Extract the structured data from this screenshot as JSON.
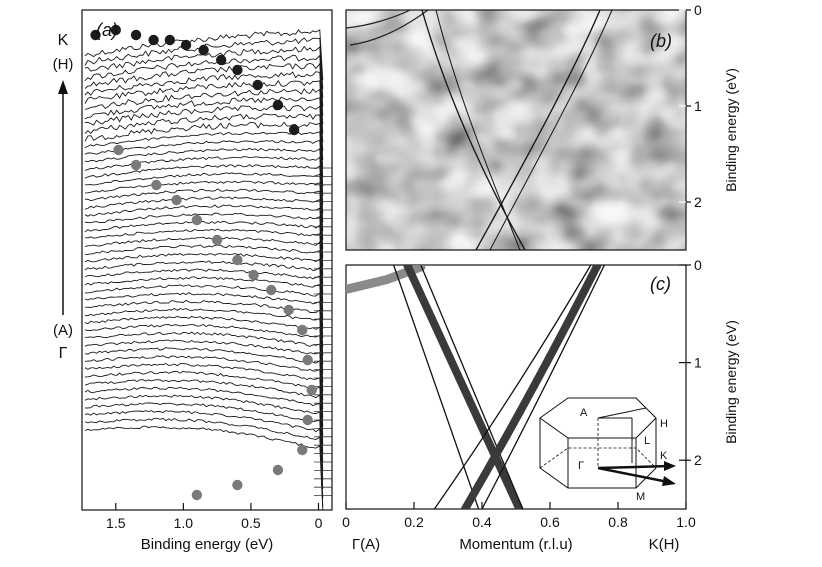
{
  "chart_data": [
    {
      "id": "a",
      "type": "line",
      "panel_label": "(a)",
      "xlabel": "Binding energy (eV)",
      "xlim": [
        1.75,
        -0.1
      ],
      "x_ticks": [
        1.5,
        1.0,
        0.5,
        0
      ],
      "x_tick_labels": [
        "1.5",
        "1.0",
        "0.5",
        "0"
      ],
      "left_axis_labels": [
        "K",
        "(H)",
        "(A)",
        "Γ"
      ],
      "curve_count": 50,
      "dispersion_dark": [
        {
          "x": 1.65,
          "y": 0.05
        },
        {
          "x": 1.5,
          "y": 0.04
        },
        {
          "x": 1.35,
          "y": 0.05
        },
        {
          "x": 1.22,
          "y": 0.06
        },
        {
          "x": 1.1,
          "y": 0.06
        },
        {
          "x": 0.98,
          "y": 0.07
        },
        {
          "x": 0.85,
          "y": 0.08
        },
        {
          "x": 0.72,
          "y": 0.1
        },
        {
          "x": 0.6,
          "y": 0.12
        },
        {
          "x": 0.45,
          "y": 0.15
        },
        {
          "x": 0.3,
          "y": 0.19
        },
        {
          "x": 0.18,
          "y": 0.24
        }
      ],
      "dispersion_grey": [
        {
          "x": 1.48,
          "y": 0.28
        },
        {
          "x": 1.35,
          "y": 0.31
        },
        {
          "x": 1.2,
          "y": 0.35
        },
        {
          "x": 1.05,
          "y": 0.38
        },
        {
          "x": 0.9,
          "y": 0.42
        },
        {
          "x": 0.75,
          "y": 0.46
        },
        {
          "x": 0.6,
          "y": 0.5
        },
        {
          "x": 0.48,
          "y": 0.53
        },
        {
          "x": 0.35,
          "y": 0.56
        },
        {
          "x": 0.22,
          "y": 0.6
        },
        {
          "x": 0.12,
          "y": 0.64
        },
        {
          "x": 0.08,
          "y": 0.7
        },
        {
          "x": 0.05,
          "y": 0.76
        },
        {
          "x": 0.08,
          "y": 0.82
        },
        {
          "x": 0.12,
          "y": 0.88
        },
        {
          "x": 0.3,
          "y": 0.92
        },
        {
          "x": 0.6,
          "y": 0.95
        },
        {
          "x": 0.9,
          "y": 0.97
        }
      ]
    },
    {
      "id": "b",
      "type": "heatmap",
      "panel_label": "(b)",
      "ylabel": "Binding energy (eV)",
      "ylim": [
        0,
        2.5
      ],
      "y_ticks": [
        0,
        1,
        2
      ],
      "y_tick_labels": [
        "0",
        "1",
        "2"
      ]
    },
    {
      "id": "c",
      "type": "line",
      "panel_label": "(c)",
      "xlabel": "Momentum (r.l.u)",
      "ylabel": "Binding energy (eV)",
      "xlim": [
        0,
        1.0
      ],
      "ylim": [
        0,
        2.5
      ],
      "x_ticks": [
        0,
        0.2,
        0.4,
        0.6,
        0.8,
        1.0
      ],
      "x_tick_labels": [
        "0",
        "0.2",
        "0.4",
        "0.6",
        "0.8",
        "1.0"
      ],
      "y_ticks": [
        0,
        1,
        2
      ],
      "y_tick_labels": [
        "0",
        "1",
        "2"
      ],
      "x_end_labels": [
        "Γ(A)",
        "K(H)"
      ],
      "bands": [
        {
          "style": "thin",
          "points": [
            [
              0.14,
              0.0
            ],
            [
              0.39,
              2.5
            ]
          ]
        },
        {
          "style": "thick",
          "points": [
            [
              0.18,
              0.0
            ],
            [
              0.51,
              2.5
            ]
          ]
        },
        {
          "style": "thin",
          "points": [
            [
              0.22,
              0.0
            ],
            [
              0.34,
              1.0
            ],
            [
              0.52,
              2.5
            ]
          ]
        },
        {
          "style": "thin",
          "points": [
            [
              0.26,
              2.5
            ],
            [
              0.5,
              1.3
            ],
            [
              0.72,
              0.0
            ]
          ]
        },
        {
          "style": "thick",
          "points": [
            [
              0.35,
              2.5
            ],
            [
              0.55,
              1.3
            ],
            [
              0.74,
              0.0
            ]
          ]
        },
        {
          "style": "thin",
          "points": [
            [
              0.4,
              2.5
            ],
            [
              0.58,
              1.3
            ],
            [
              0.76,
              0.0
            ]
          ]
        }
      ],
      "grey_band": [
        [
          0.0,
          0.25
        ],
        [
          0.12,
          0.15
        ],
        [
          0.22,
          0.02
        ]
      ],
      "brillouin_zone_labels": [
        "A",
        "H",
        "L",
        "Γ",
        "K",
        "M"
      ]
    }
  ]
}
